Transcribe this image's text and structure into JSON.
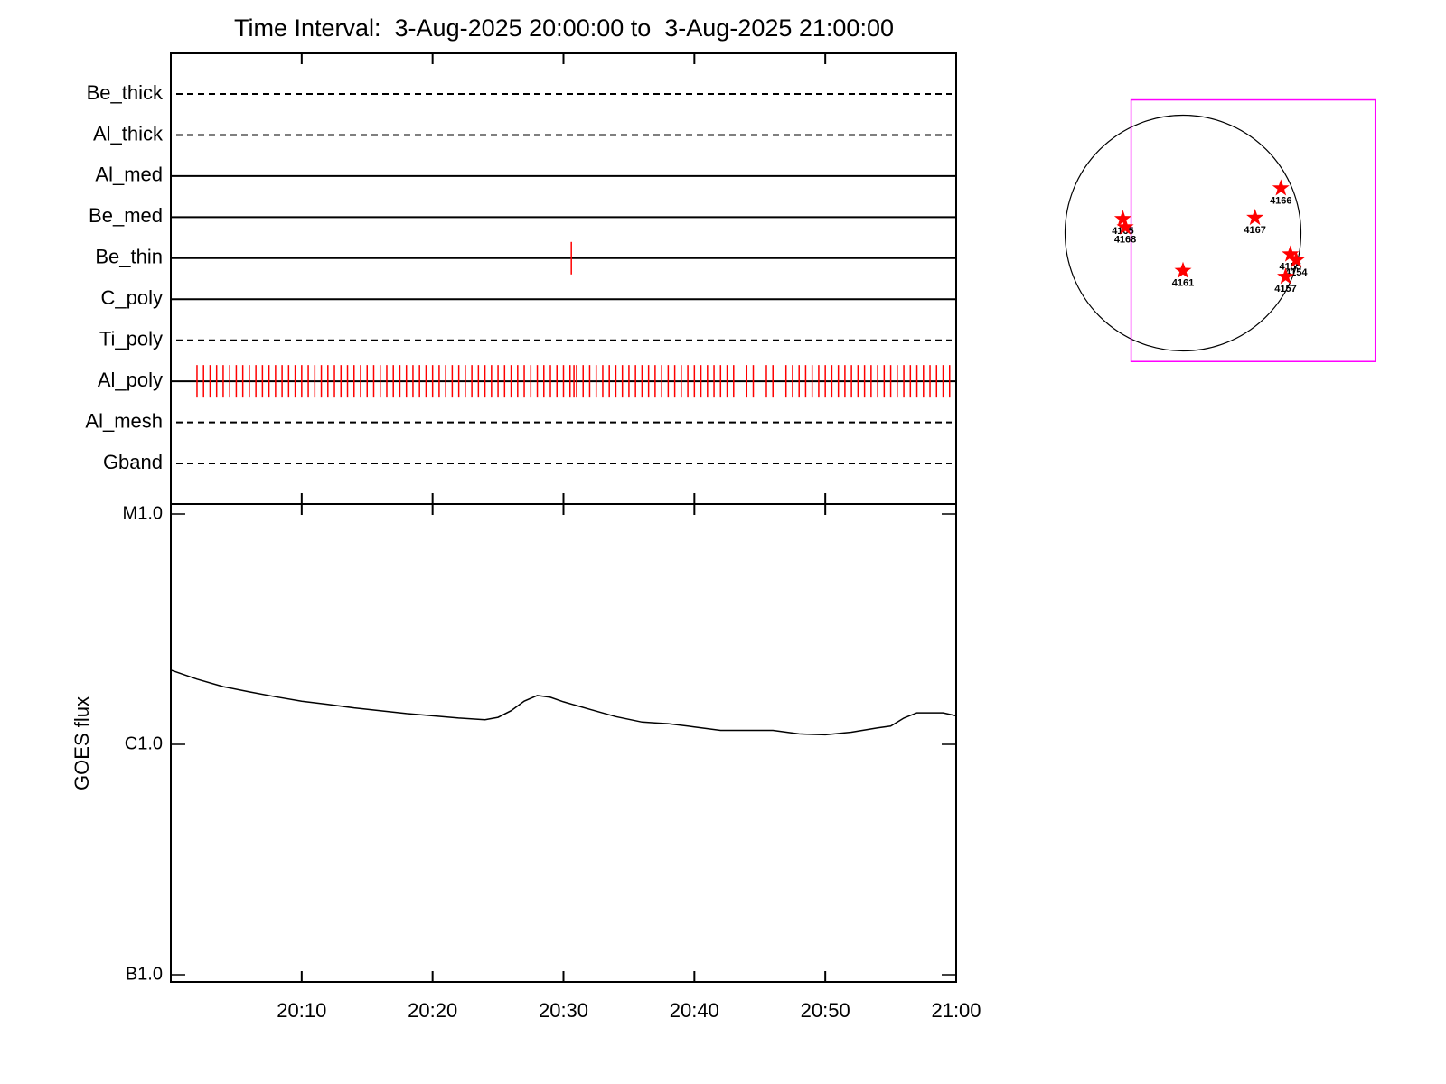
{
  "chart_data": [
    {
      "type": "timeline",
      "title": "Time Interval:  3-Aug-2025 20:00:00 to  3-Aug-2025 21:00:00",
      "event_color": "#ff0000",
      "rows": [
        {
          "name": "Be_thick",
          "linestyle": "dashed"
        },
        {
          "name": "Al_thick",
          "linestyle": "dashed"
        },
        {
          "name": "Al_med",
          "linestyle": "solid"
        },
        {
          "name": "Be_med",
          "linestyle": "solid"
        },
        {
          "name": "Be_thin",
          "linestyle": "solid",
          "events": [
            30.6
          ]
        },
        {
          "name": "C_poly",
          "linestyle": "solid"
        },
        {
          "name": "Ti_poly",
          "linestyle": "dashed"
        },
        {
          "name": "Al_poly",
          "linestyle": "solid",
          "events": [
            2,
            2.5,
            3,
            3.5,
            4,
            4.5,
            5,
            5.5,
            6,
            6.5,
            7,
            7.5,
            8,
            8.5,
            9,
            9.5,
            10,
            10.5,
            11,
            11.5,
            12,
            12.5,
            13,
            13.5,
            14,
            14.5,
            15,
            15.5,
            16,
            16.5,
            17,
            17.5,
            18,
            18.5,
            19,
            19.5,
            20,
            20.5,
            21,
            21.5,
            22,
            22.5,
            23,
            23.5,
            24,
            24.5,
            25,
            25.5,
            26,
            26.5,
            27,
            27.5,
            28,
            28.5,
            29,
            29.5,
            30,
            30.5,
            30.8,
            31,
            31.5,
            32,
            32.5,
            33,
            33.5,
            34,
            34.5,
            35,
            35.5,
            36,
            36.5,
            37,
            37.5,
            38,
            38.5,
            39,
            39.5,
            40,
            40.5,
            41,
            41.5,
            42,
            42.5,
            43,
            44,
            44.5,
            45.5,
            46,
            47,
            47.5,
            48,
            48.5,
            49,
            49.5,
            50,
            50.5,
            51,
            51.5,
            52,
            52.5,
            53,
            53.5,
            54,
            54.5,
            55,
            55.5,
            56,
            56.5,
            57,
            57.5,
            58,
            58.5,
            59,
            59.5
          ]
        },
        {
          "name": "Al_mesh",
          "linestyle": "dashed"
        },
        {
          "name": "Gband",
          "linestyle": "dashed"
        }
      ]
    },
    {
      "type": "line",
      "y_label": "GOES flux",
      "log_y": true,
      "xlim": [
        0,
        60
      ],
      "xticks": [
        {
          "value": 10,
          "label": "20:10"
        },
        {
          "value": 20,
          "label": "20:20"
        },
        {
          "value": 30,
          "label": "20:30"
        },
        {
          "value": 40,
          "label": "20:40"
        },
        {
          "value": 50,
          "label": "20:50"
        },
        {
          "value": 60,
          "label": "21:00"
        }
      ],
      "ylim": [
        1e-07,
        1e-05
      ],
      "yticks": [
        {
          "value": 1e-07,
          "label": "B1.0"
        },
        {
          "value": 1e-06,
          "label": "C1.0"
        },
        {
          "value": 1e-05,
          "label": "M1.0"
        }
      ],
      "x": [
        0,
        2,
        4,
        6,
        8,
        10,
        12,
        14,
        16,
        18,
        20,
        22,
        24,
        25,
        26,
        27,
        28,
        29,
        30,
        32,
        34,
        36,
        37,
        38,
        40,
        42,
        44,
        46,
        48,
        50,
        52,
        54,
        55,
        56,
        57,
        58,
        59,
        60
      ],
      "series": [
        {
          "color": "#000000",
          "values": [
            2.1e-06,
            1.92e-06,
            1.78e-06,
            1.69e-06,
            1.61e-06,
            1.54e-06,
            1.49e-06,
            1.44e-06,
            1.4e-06,
            1.36e-06,
            1.33e-06,
            1.3e-06,
            1.28e-06,
            1.31e-06,
            1.4e-06,
            1.54e-06,
            1.63e-06,
            1.6e-06,
            1.53e-06,
            1.42e-06,
            1.32e-06,
            1.25e-06,
            1.24e-06,
            1.23e-06,
            1.19e-06,
            1.15e-06,
            1.15e-06,
            1.15e-06,
            1.11e-06,
            1.1e-06,
            1.13e-06,
            1.18e-06,
            1.2e-06,
            1.3e-06,
            1.37e-06,
            1.37e-06,
            1.37e-06,
            1.33e-06
          ]
        }
      ]
    },
    {
      "type": "map",
      "color": "#ff0000",
      "fov_color": "#ff00ff",
      "fov_x": [
        -0.44,
        1.63
      ],
      "fov_y": [
        -1.09,
        1.13
      ],
      "labels": [
        "4166",
        "4165",
        "4168",
        "4167",
        "4155",
        "4154",
        "4161",
        "4157"
      ],
      "x": [
        0.83,
        -0.51,
        -0.49,
        0.61,
        0.91,
        0.96,
        0.0,
        0.87
      ],
      "y": [
        0.38,
        0.12,
        0.05,
        0.13,
        -0.18,
        -0.23,
        -0.32,
        -0.37
      ]
    }
  ]
}
